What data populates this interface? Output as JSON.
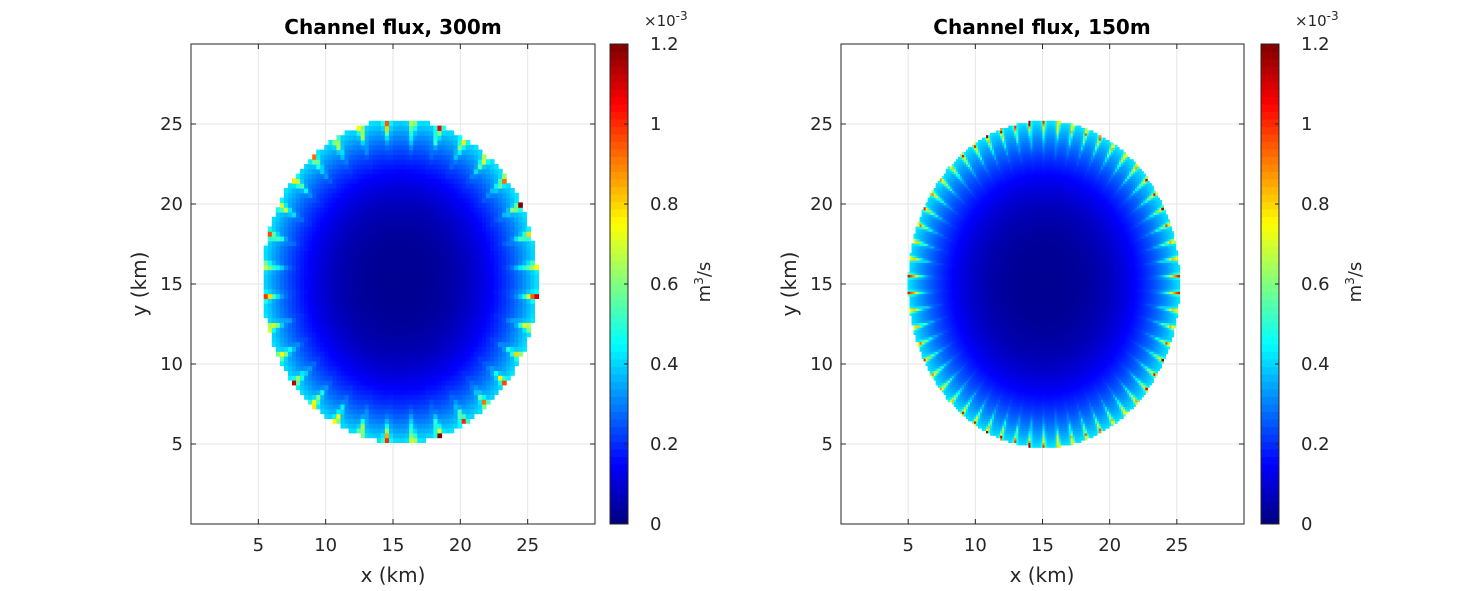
{
  "figure": {
    "panels": [
      {
        "title": "Channel flux, 300m",
        "xlabel": "x (km)",
        "ylabel": "y (km)",
        "colorbar": {
          "label_base": "m",
          "label_sup": "3",
          "label_rest": "/s",
          "exponent_base": "×10",
          "exponent_power": "-3"
        }
      },
      {
        "title": "Channel flux, 150m",
        "xlabel": "x (km)",
        "ylabel": "y (km)",
        "colorbar": {
          "label_base": "m",
          "label_sup": "3",
          "label_rest": "/s",
          "exponent_base": "×10",
          "exponent_power": "-3"
        }
      }
    ]
  },
  "chart_data": [
    {
      "type": "heatmap",
      "title": "Channel flux, 300m",
      "xlabel": "x (km)",
      "ylabel": "y (km)",
      "xlim": [
        0,
        30
      ],
      "ylim": [
        0,
        30
      ],
      "xticks": [
        5,
        10,
        15,
        20,
        25
      ],
      "yticks": [
        5,
        10,
        15,
        20,
        25
      ],
      "grid": true,
      "colormap": "jet",
      "clim": [
        0,
        0.0012
      ],
      "colorbar_ticks": [
        "0",
        "0.2",
        "0.4",
        "0.6",
        "0.8",
        "1",
        "1.2"
      ],
      "colorbar_tick_values": [
        0,
        0.2,
        0.4,
        0.6,
        0.8,
        1.0,
        1.2
      ],
      "colorbar_scale": "×10^-3",
      "colorbar_label": "m^3/s",
      "domain": {
        "shape": "ellipse",
        "center": [
          15.5,
          15.2
        ],
        "semi_axes": [
          10.2,
          10.1
        ]
      },
      "cell_size_km": 0.3,
      "ring_channels": 32,
      "edge_value_typical": 0.3,
      "peak_value": 1.2,
      "center_value": 0.02
    },
    {
      "type": "heatmap",
      "title": "Channel flux, 150m",
      "xlabel": "x (km)",
      "ylabel": "y (km)",
      "xlim": [
        0,
        30
      ],
      "ylim": [
        0,
        30
      ],
      "xticks": [
        5,
        10,
        15,
        20,
        25
      ],
      "yticks": [
        5,
        10,
        15,
        20,
        25
      ],
      "grid": true,
      "colormap": "jet",
      "clim": [
        0,
        0.0012
      ],
      "colorbar_ticks": [
        "0",
        "0.2",
        "0.4",
        "0.6",
        "0.8",
        "1",
        "1.2"
      ],
      "colorbar_tick_values": [
        0,
        0.2,
        0.4,
        0.6,
        0.8,
        1.0,
        1.2
      ],
      "colorbar_scale": "×10^-3",
      "colorbar_label": "m^3/s",
      "domain": {
        "shape": "ellipse",
        "center": [
          15.1,
          15.0
        ],
        "semi_axes": [
          10.1,
          10.2
        ]
      },
      "cell_size_km": 0.15,
      "ring_channels": 58,
      "edge_value_typical": 0.3,
      "peak_value": 1.2,
      "center_value": 0.02
    }
  ]
}
